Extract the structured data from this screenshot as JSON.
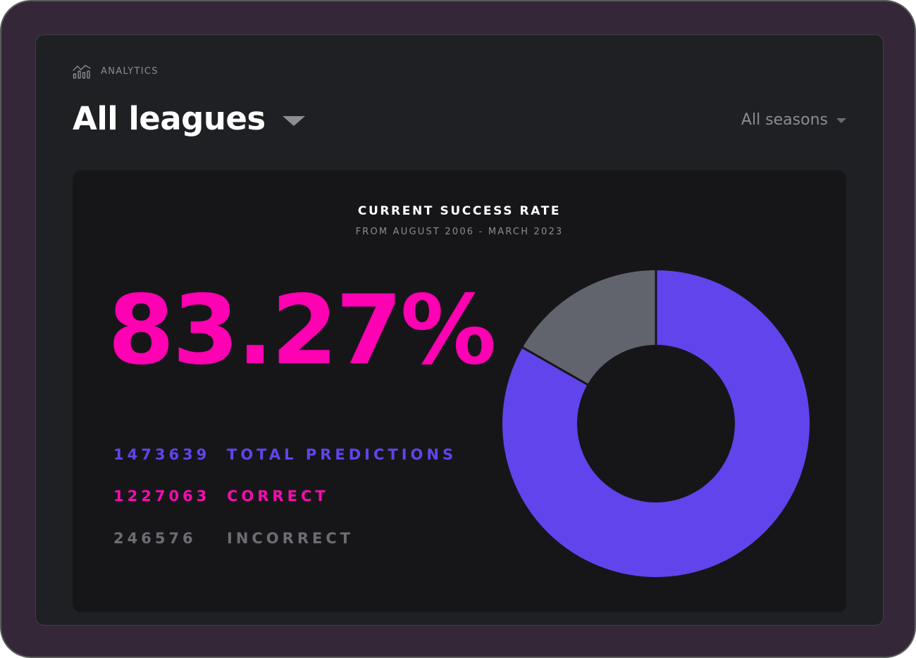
{
  "header": {
    "section_label": "ANALYTICS",
    "section_icon": "analytics-chart-icon"
  },
  "filters": {
    "league": "All leagues",
    "season": "All seasons"
  },
  "card": {
    "title": "CURRENT SUCCESS RATE",
    "subtitle": "FROM AUGUST 2006 - MARCH 2023",
    "rate": "83.27%"
  },
  "stats": [
    {
      "value": "1473639",
      "label": "TOTAL PREDICTIONS"
    },
    {
      "value": "1227063",
      "label": "CORRECT"
    },
    {
      "value": "246576",
      "label": "INCORRECT"
    }
  ],
  "colors": {
    "accent_pink": "#ff00b3",
    "accent_purple": "#6244ec",
    "muted_gray": "#62646d",
    "card_bg": "#161619",
    "screen_bg": "#1f2024",
    "device_frame": "#342838"
  },
  "chart_data": {
    "type": "pie",
    "variant": "donut",
    "categories": [
      "Correct",
      "Incorrect"
    ],
    "values": [
      1227063,
      246576
    ],
    "colors": [
      "#6244ec",
      "#62646d"
    ],
    "start": "top",
    "direction": "clockwise"
  }
}
